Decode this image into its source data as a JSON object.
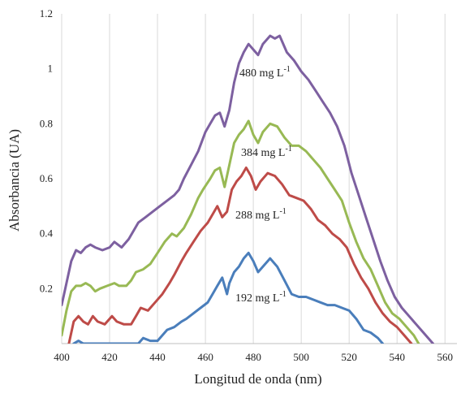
{
  "chart_data": {
    "type": "line",
    "xlabel": "Longitud de onda (nm)",
    "ylabel": "Absorbancia (UA)",
    "xlim": [
      400,
      565
    ],
    "ylim": [
      0,
      1.2
    ],
    "x_ticks": [
      "400",
      "420",
      "440",
      "460",
      "480",
      "500",
      "520",
      "540",
      "560"
    ],
    "y_ticks": [
      "0.2",
      "0.4",
      "0.6",
      "0.8",
      "1",
      "1.2"
    ],
    "grid": "vertical",
    "legend": "inline-labels",
    "series": [
      {
        "name": "192 mg L-1",
        "label_base": "192 mg L",
        "label_sup": "-1",
        "color": "#4a7ebb",
        "points": [
          [
            405,
            0
          ],
          [
            407,
            0.01
          ],
          [
            409,
            0
          ],
          [
            432,
            0
          ],
          [
            434,
            0.02
          ],
          [
            437,
            0.01
          ],
          [
            440,
            0.01
          ],
          [
            442,
            0.03
          ],
          [
            444,
            0.05
          ],
          [
            447,
            0.06
          ],
          [
            450,
            0.08
          ],
          [
            452,
            0.09
          ],
          [
            455,
            0.11
          ],
          [
            458,
            0.13
          ],
          [
            461,
            0.15
          ],
          [
            463,
            0.18
          ],
          [
            465,
            0.21
          ],
          [
            467,
            0.24
          ],
          [
            469,
            0.18
          ],
          [
            470,
            0.22
          ],
          [
            472,
            0.26
          ],
          [
            474,
            0.28
          ],
          [
            476,
            0.31
          ],
          [
            478,
            0.33
          ],
          [
            480,
            0.3
          ],
          [
            482,
            0.26
          ],
          [
            484,
            0.28
          ],
          [
            487,
            0.31
          ],
          [
            490,
            0.28
          ],
          [
            493,
            0.23
          ],
          [
            496,
            0.18
          ],
          [
            499,
            0.17
          ],
          [
            502,
            0.17
          ],
          [
            505,
            0.16
          ],
          [
            508,
            0.15
          ],
          [
            511,
            0.14
          ],
          [
            514,
            0.14
          ],
          [
            517,
            0.13
          ],
          [
            520,
            0.12
          ],
          [
            523,
            0.09
          ],
          [
            526,
            0.05
          ],
          [
            529,
            0.04
          ],
          [
            532,
            0.02
          ],
          [
            534,
            0
          ]
        ]
      },
      {
        "name": "288 mg L-1",
        "label_base": "288 mg L",
        "label_sup": "-1",
        "color": "#be4b48",
        "points": [
          [
            403,
            0
          ],
          [
            405,
            0.08
          ],
          [
            407,
            0.1
          ],
          [
            409,
            0.08
          ],
          [
            411,
            0.07
          ],
          [
            413,
            0.1
          ],
          [
            415,
            0.08
          ],
          [
            418,
            0.07
          ],
          [
            421,
            0.1
          ],
          [
            423,
            0.08
          ],
          [
            426,
            0.07
          ],
          [
            429,
            0.07
          ],
          [
            431,
            0.1
          ],
          [
            433,
            0.13
          ],
          [
            436,
            0.12
          ],
          [
            439,
            0.15
          ],
          [
            442,
            0.18
          ],
          [
            445,
            0.22
          ],
          [
            447,
            0.25
          ],
          [
            450,
            0.3
          ],
          [
            452,
            0.33
          ],
          [
            455,
            0.37
          ],
          [
            458,
            0.41
          ],
          [
            461,
            0.44
          ],
          [
            463,
            0.47
          ],
          [
            465,
            0.5
          ],
          [
            467,
            0.46
          ],
          [
            469,
            0.48
          ],
          [
            471,
            0.56
          ],
          [
            473,
            0.59
          ],
          [
            475,
            0.61
          ],
          [
            477,
            0.64
          ],
          [
            479,
            0.61
          ],
          [
            481,
            0.56
          ],
          [
            483,
            0.59
          ],
          [
            486,
            0.62
          ],
          [
            489,
            0.61
          ],
          [
            492,
            0.58
          ],
          [
            495,
            0.54
          ],
          [
            498,
            0.53
          ],
          [
            501,
            0.52
          ],
          [
            504,
            0.49
          ],
          [
            507,
            0.45
          ],
          [
            510,
            0.43
          ],
          [
            513,
            0.4
          ],
          [
            516,
            0.38
          ],
          [
            519,
            0.35
          ],
          [
            522,
            0.29
          ],
          [
            525,
            0.24
          ],
          [
            528,
            0.2
          ],
          [
            531,
            0.15
          ],
          [
            534,
            0.11
          ],
          [
            537,
            0.08
          ],
          [
            540,
            0.06
          ],
          [
            543,
            0.03
          ],
          [
            546,
            0
          ]
        ]
      },
      {
        "name": "384 mg L-1",
        "label_base": "384 mg L",
        "label_sup": "-1",
        "color": "#98b954",
        "points": [
          [
            400,
            0.03
          ],
          [
            402,
            0.12
          ],
          [
            404,
            0.19
          ],
          [
            406,
            0.21
          ],
          [
            408,
            0.21
          ],
          [
            410,
            0.22
          ],
          [
            412,
            0.21
          ],
          [
            414,
            0.19
          ],
          [
            416,
            0.2
          ],
          [
            419,
            0.21
          ],
          [
            422,
            0.22
          ],
          [
            424,
            0.21
          ],
          [
            427,
            0.21
          ],
          [
            429,
            0.23
          ],
          [
            431,
            0.26
          ],
          [
            434,
            0.27
          ],
          [
            437,
            0.29
          ],
          [
            440,
            0.33
          ],
          [
            443,
            0.37
          ],
          [
            446,
            0.4
          ],
          [
            448,
            0.39
          ],
          [
            451,
            0.42
          ],
          [
            454,
            0.47
          ],
          [
            457,
            0.53
          ],
          [
            459,
            0.56
          ],
          [
            462,
            0.6
          ],
          [
            464,
            0.63
          ],
          [
            466,
            0.64
          ],
          [
            468,
            0.57
          ],
          [
            470,
            0.65
          ],
          [
            472,
            0.73
          ],
          [
            474,
            0.76
          ],
          [
            476,
            0.78
          ],
          [
            478,
            0.81
          ],
          [
            480,
            0.76
          ],
          [
            482,
            0.73
          ],
          [
            484,
            0.77
          ],
          [
            487,
            0.8
          ],
          [
            490,
            0.79
          ],
          [
            493,
            0.75
          ],
          [
            496,
            0.72
          ],
          [
            499,
            0.72
          ],
          [
            502,
            0.7
          ],
          [
            505,
            0.67
          ],
          [
            508,
            0.64
          ],
          [
            511,
            0.6
          ],
          [
            514,
            0.56
          ],
          [
            517,
            0.52
          ],
          [
            520,
            0.44
          ],
          [
            523,
            0.37
          ],
          [
            526,
            0.31
          ],
          [
            529,
            0.27
          ],
          [
            532,
            0.21
          ],
          [
            535,
            0.15
          ],
          [
            538,
            0.11
          ],
          [
            541,
            0.09
          ],
          [
            544,
            0.06
          ],
          [
            547,
            0.03
          ],
          [
            549,
            0
          ]
        ]
      },
      {
        "name": "480 mg L-1",
        "label_base": "480 mg L",
        "label_sup": "-1",
        "color": "#7d60a0",
        "points": [
          [
            400,
            0.14
          ],
          [
            402,
            0.22
          ],
          [
            404,
            0.3
          ],
          [
            406,
            0.34
          ],
          [
            408,
            0.33
          ],
          [
            410,
            0.35
          ],
          [
            412,
            0.36
          ],
          [
            414,
            0.35
          ],
          [
            417,
            0.34
          ],
          [
            420,
            0.35
          ],
          [
            422,
            0.37
          ],
          [
            425,
            0.35
          ],
          [
            428,
            0.38
          ],
          [
            430,
            0.41
          ],
          [
            432,
            0.44
          ],
          [
            435,
            0.46
          ],
          [
            438,
            0.48
          ],
          [
            441,
            0.5
          ],
          [
            444,
            0.52
          ],
          [
            447,
            0.54
          ],
          [
            449,
            0.56
          ],
          [
            451,
            0.6
          ],
          [
            454,
            0.65
          ],
          [
            457,
            0.7
          ],
          [
            460,
            0.77
          ],
          [
            462,
            0.8
          ],
          [
            464,
            0.83
          ],
          [
            466,
            0.84
          ],
          [
            468,
            0.79
          ],
          [
            470,
            0.85
          ],
          [
            472,
            0.95
          ],
          [
            474,
            1.02
          ],
          [
            476,
            1.06
          ],
          [
            478,
            1.09
          ],
          [
            480,
            1.07
          ],
          [
            482,
            1.05
          ],
          [
            484,
            1.09
          ],
          [
            487,
            1.12
          ],
          [
            489,
            1.11
          ],
          [
            491,
            1.12
          ],
          [
            494,
            1.06
          ],
          [
            497,
            1.03
          ],
          [
            500,
            0.99
          ],
          [
            503,
            0.96
          ],
          [
            506,
            0.92
          ],
          [
            509,
            0.88
          ],
          [
            512,
            0.84
          ],
          [
            515,
            0.79
          ],
          [
            518,
            0.72
          ],
          [
            521,
            0.62
          ],
          [
            524,
            0.54
          ],
          [
            527,
            0.46
          ],
          [
            530,
            0.38
          ],
          [
            533,
            0.3
          ],
          [
            536,
            0.23
          ],
          [
            539,
            0.17
          ],
          [
            542,
            0.13
          ],
          [
            545,
            0.1
          ],
          [
            548,
            0.07
          ],
          [
            551,
            0.04
          ],
          [
            553,
            0.02
          ],
          [
            555,
            0
          ]
        ]
      }
    ]
  }
}
